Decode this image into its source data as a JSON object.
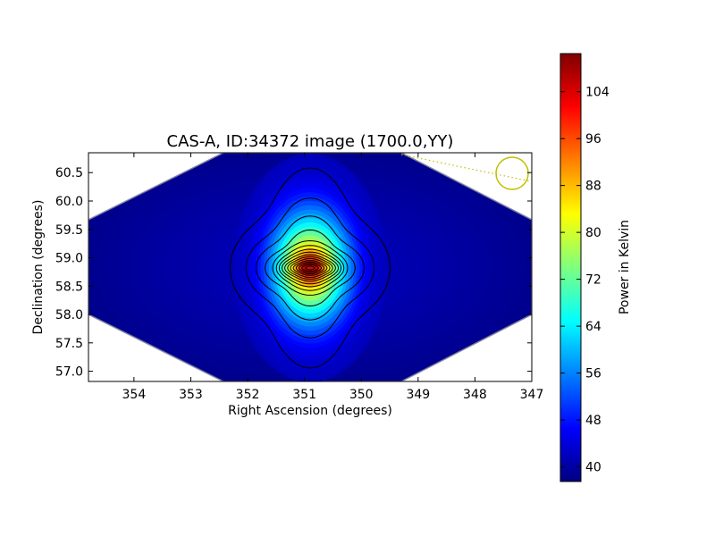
{
  "chart_data": {
    "type": "heatmap",
    "title": "CAS-A, ID:34372 image (1700.0,YY)",
    "xlabel": "Right Ascension (degrees)",
    "ylabel": "Declination (degrees)",
    "xlim": [
      354.8,
      347.0
    ],
    "ylim": [
      56.82,
      60.85
    ],
    "x_ticks": [
      "354",
      "353",
      "352",
      "351",
      "350",
      "349",
      "348",
      "347"
    ],
    "y_ticks": [
      "57.0",
      "57.5",
      "58.0",
      "58.5",
      "59.0",
      "59.5",
      "60.0",
      "60.5"
    ],
    "peak": {
      "ra": 350.9,
      "dec": 58.82,
      "value": 110
    },
    "background_value": 38,
    "colorbar": {
      "label": "Power in Kelvin",
      "range": [
        37.5,
        110.5
      ],
      "ticks": [
        "40",
        "48",
        "56",
        "64",
        "72",
        "80",
        "88",
        "96",
        "104"
      ],
      "colormap": "jet"
    },
    "colors": {
      "contour": "#000000",
      "beam_marker": "#bfbf00",
      "edge": "#8080a0"
    }
  }
}
